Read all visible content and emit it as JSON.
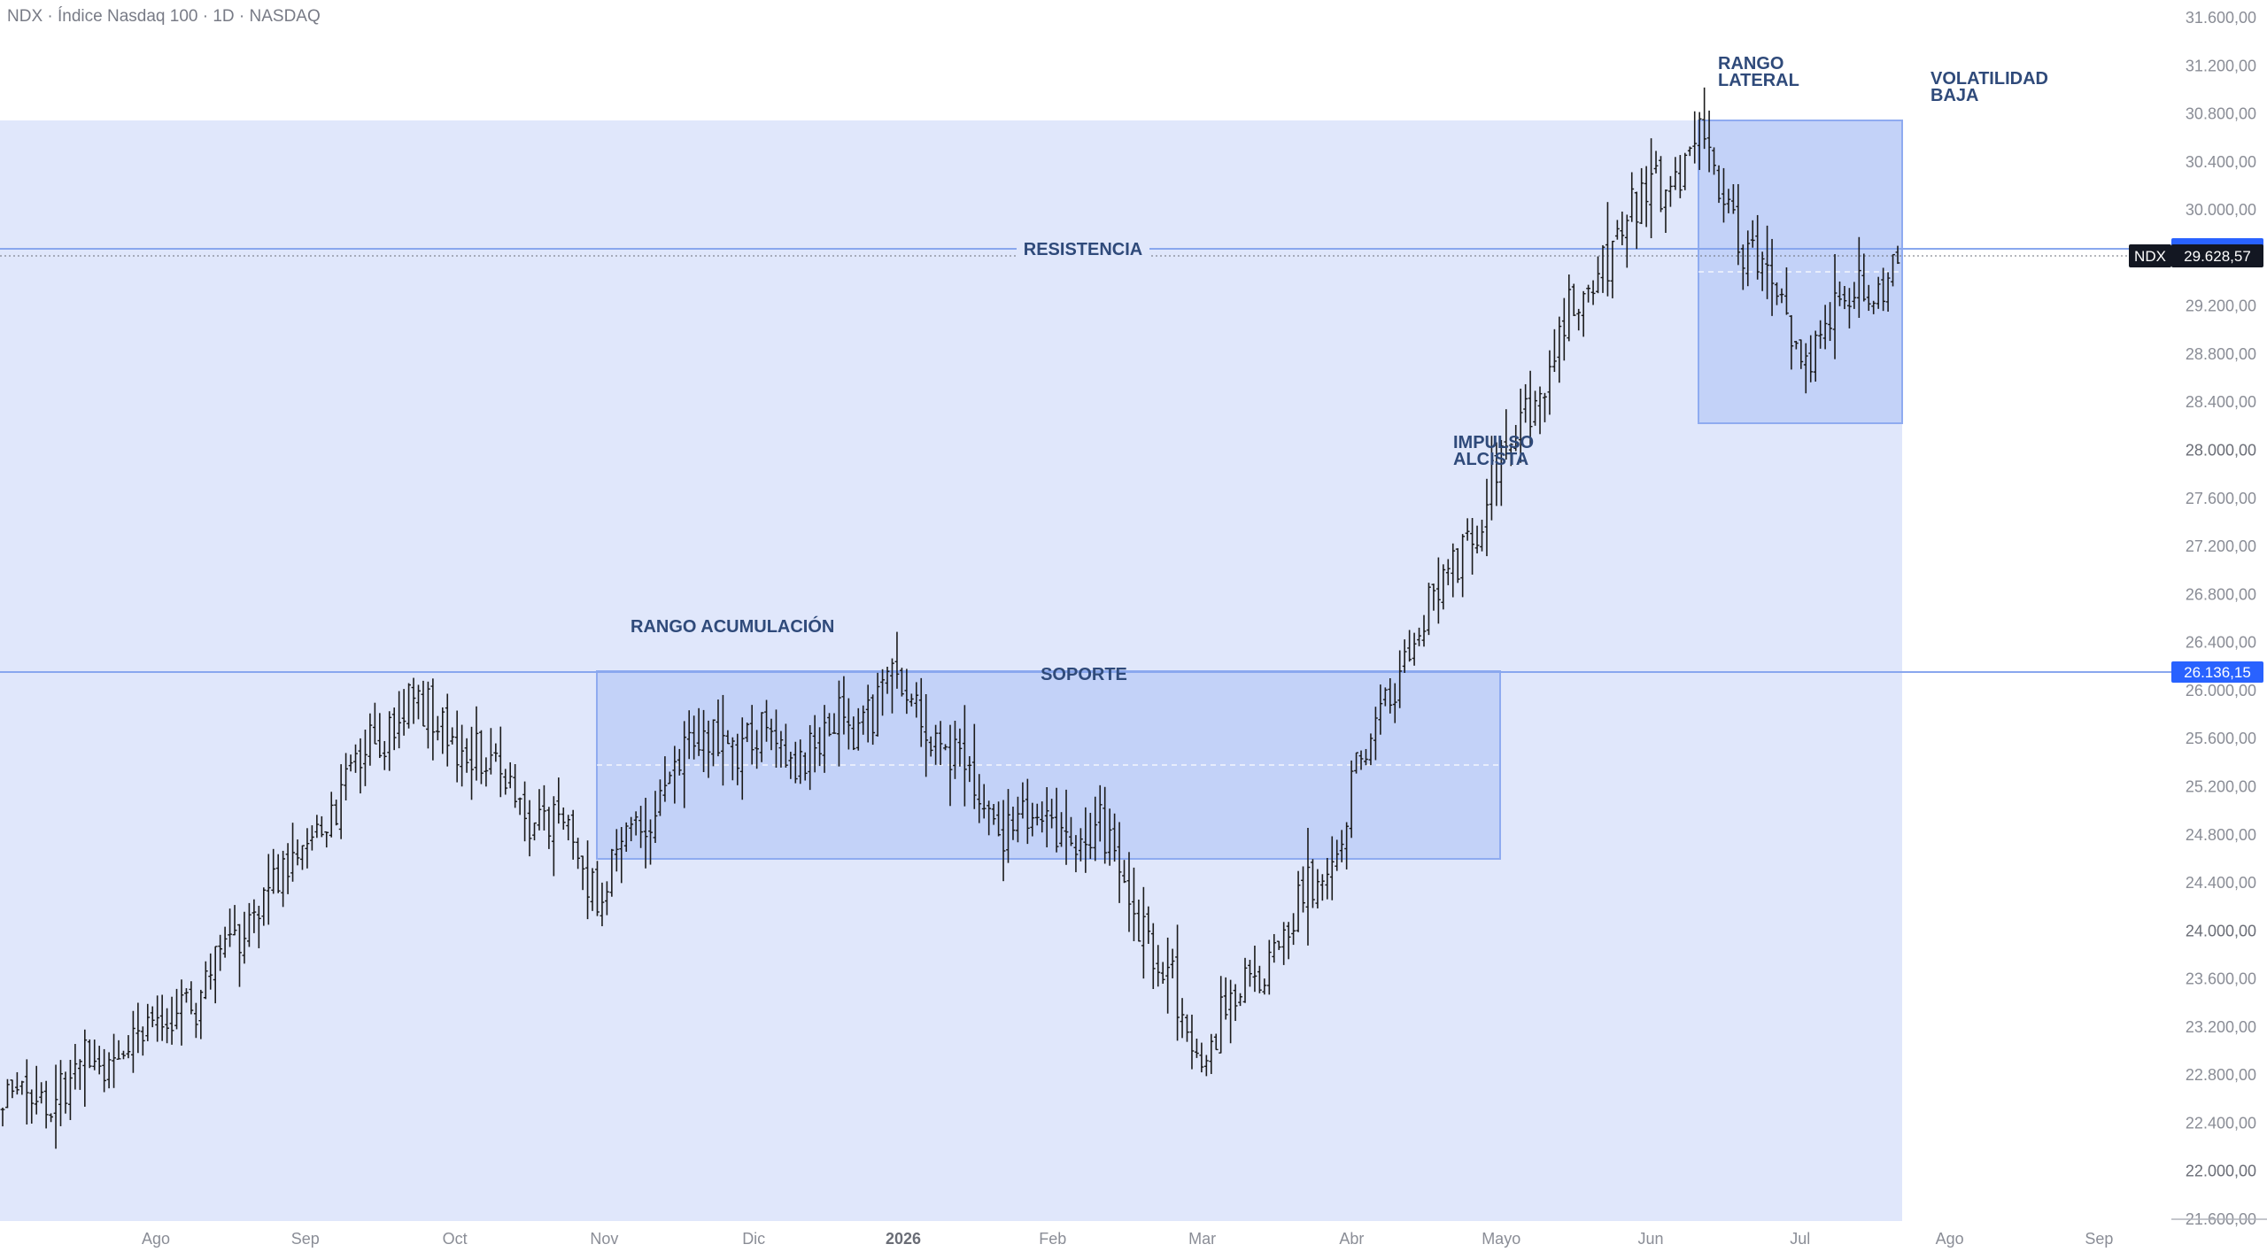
{
  "title": "NDX · Índice Nasdaq 100 · 1D · NASDAQ",
  "colors": {
    "background": "#ffffff",
    "zone_fill": "#e0e7fb",
    "range_fill": "#c3d2f8",
    "range_border": "#8fabf0",
    "level_line": "#89a7ee",
    "bar": "#1b1b1b",
    "annotation_text": "#2f4a7a",
    "badge_blue": "#2962ff",
    "badge_black": "#131722"
  },
  "price_axis": {
    "labels": [
      "31.600,00",
      "31.200,00",
      "30.800,00",
      "30.400,00",
      "30.000,00",
      "29.600,00",
      "29.200,00",
      "28.800,00",
      "28.400,00",
      "28.000,00",
      "27.600,00",
      "27.200,00",
      "26.800,00",
      "26.400,00",
      "26.000,00",
      "25.600,00",
      "25.200,00",
      "24.800,00",
      "24.400,00",
      "24.000,00",
      "23.600,00",
      "23.200,00",
      "22.800,00",
      "22.400,00",
      "22.000,00",
      "21.600,00"
    ],
    "bold_labels": [
      "28.000,00",
      "24.000,00",
      "22.000,00"
    ]
  },
  "time_axis": {
    "labels": [
      "Ago",
      "Sep",
      "Oct",
      "Nov",
      "Dic",
      "2026",
      "Feb",
      "Mar",
      "Abr",
      "Mayo",
      "Jun",
      "Jul",
      "Ago",
      "Sep"
    ],
    "bold_labels": [
      "2026"
    ]
  },
  "annotations": {
    "resistencia": "RESISTENCIA",
    "soporte": "SOPORTE",
    "rango_acumulacion": "RANGO ACUMULACIÓN",
    "impulso_line1": "IMPULSO",
    "impulso_line2": "ALCISTA",
    "rango_lateral_line1": "RANGO",
    "rango_lateral_line2": "LATERAL",
    "volatilidad_line1": "VOLATILIDAD",
    "volatilidad_line2": "BAJA"
  },
  "badges": {
    "symbol": "NDX",
    "last_price": "29.628,57",
    "support_price": "26.136,15"
  },
  "chart_data": {
    "type": "ohlc",
    "title": "NDX · Índice Nasdaq 100 · 1D · NASDAQ",
    "last_price": 29628.57,
    "x_axis": [
      "Ago",
      "Sep",
      "Oct",
      "Nov",
      "Dic",
      "2026",
      "Feb",
      "Mar",
      "Abr",
      "Mayo",
      "Jun",
      "Jul",
      "Ago",
      "Sep"
    ],
    "ylim": [
      21600,
      31600
    ],
    "levels": [
      {
        "name": "RESISTENCIA",
        "price": 29700
      },
      {
        "name": "SOPORTE",
        "price": 26136.15
      }
    ],
    "zones": [
      {
        "name": "RANGO ACUMULACIÓN",
        "from": "Oct",
        "to": "Abr",
        "low": 24560,
        "high": 26136
      },
      {
        "name": "RANGO LATERAL",
        "from": "Jun",
        "to": "Jul",
        "low": 28200,
        "high": 30760
      }
    ],
    "approx_closes": [
      {
        "date": "Jul",
        "close": 22500
      },
      {
        "date": "Ago",
        "close": 22900
      },
      {
        "date": "Sep",
        "close": 23500
      },
      {
        "date": "Oct",
        "close": 24700
      },
      {
        "date": "Oct",
        "close": 25900
      },
      {
        "date": "Nov",
        "close": 25300
      },
      {
        "date": "Nov",
        "close": 24400
      },
      {
        "date": "Dic",
        "close": 25600
      },
      {
        "date": "2026",
        "close": 25500
      },
      {
        "date": "Feb",
        "close": 26000
      },
      {
        "date": "Feb",
        "close": 24900
      },
      {
        "date": "Mar",
        "close": 24800
      },
      {
        "date": "Mar",
        "close": 23000
      },
      {
        "date": "Abr",
        "close": 24100
      },
      {
        "date": "Abr",
        "close": 26200
      },
      {
        "date": "Mayo",
        "close": 27800
      },
      {
        "date": "Mayo",
        "close": 29600
      },
      {
        "date": "Jun",
        "close": 30600
      },
      {
        "date": "Jun",
        "close": 28800
      },
      {
        "date": "Jul",
        "close": 29628.57
      }
    ]
  }
}
